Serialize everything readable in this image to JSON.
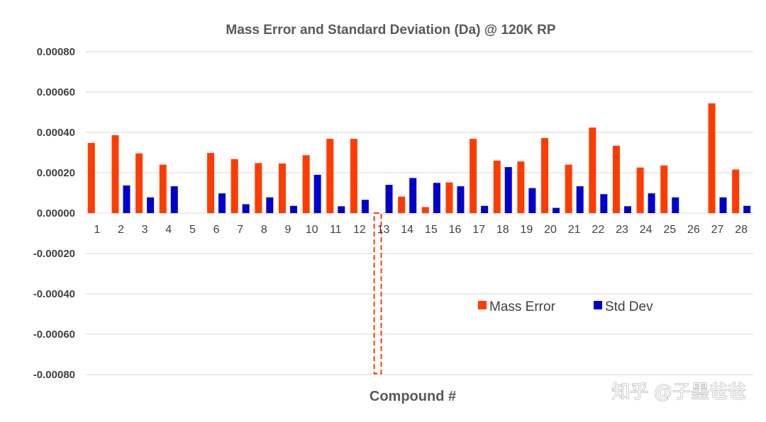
{
  "chart_data": {
    "type": "bar",
    "title": "Mass Error and Standard Deviation (Da) @ 120K RP",
    "xlabel": "Compound #",
    "ylabel": "",
    "ylim": [
      -0.0008,
      0.0008
    ],
    "yticks": [
      "0.00080",
      "0.00060",
      "0.00040",
      "0.00020",
      "0.00000",
      "-0.00020",
      "-0.00040",
      "-0.00060",
      "-0.00080"
    ],
    "ytick_values": [
      0.0008,
      0.0006,
      0.0004,
      0.0002,
      0,
      -0.0002,
      -0.0004,
      -0.0006,
      -0.0008
    ],
    "grid": true,
    "legend_position": "lower-right",
    "categories": [
      "1",
      "2",
      "3",
      "4",
      "5",
      "6",
      "7",
      "8",
      "9",
      "10",
      "11",
      "12",
      "13",
      "14",
      "15",
      "16",
      "17",
      "18",
      "19",
      "20",
      "21",
      "22",
      "23",
      "24",
      "25",
      "26",
      "27",
      "28"
    ],
    "series": [
      {
        "name": "Mass Error",
        "color": "#ff3c00",
        "values": [
          0.000348,
          0.000386,
          0.000296,
          0.00024,
          0,
          0.000298,
          0.000268,
          0.000248,
          0.000246,
          0.000287,
          0.000368,
          0.000368,
          -0.000795,
          8.2e-05,
          3e-05,
          0.000152,
          0.000368,
          0.00026,
          0.000256,
          0.000372,
          0.00024,
          0.000424,
          0.000334,
          0.000226,
          0.000236,
          0,
          0.000544,
          0.000216
        ]
      },
      {
        "name": "Std Dev",
        "color": "#0000cc",
        "values": [
          0,
          0.000137,
          7.8e-05,
          0.000133,
          0,
          9.8e-05,
          4.4e-05,
          7.8e-05,
          3.6e-05,
          0.00019,
          3.4e-05,
          6.6e-05,
          0.00014,
          0.000174,
          0.00015,
          0.000133,
          3.6e-05,
          0.000228,
          0.000124,
          2.6e-05,
          0.000133,
          9.4e-05,
          3.4e-05,
          9.8e-05,
          7.8e-05,
          0,
          7.8e-05,
          3.6e-05
        ]
      }
    ]
  },
  "watermark": "知乎 @子墨爸爸"
}
